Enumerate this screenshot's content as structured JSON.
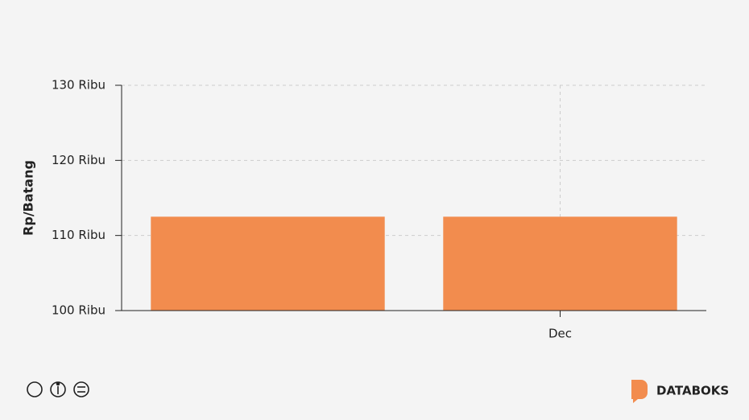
{
  "chart_data": {
    "type": "bar",
    "y_label": "Rp/Batang",
    "categories": [
      null,
      "Dec"
    ],
    "values": [
      112500,
      112500
    ],
    "color": "#f28c4e",
    "ylim": [
      100000,
      130000
    ],
    "yticks": [
      {
        "value": 100000,
        "label": "100 Ribu"
      },
      {
        "value": 110000,
        "label": "110 Ribu"
      },
      {
        "value": 120000,
        "label": "120 Ribu"
      },
      {
        "value": 130000,
        "label": "130 Ribu"
      }
    ],
    "grid": true
  },
  "footer": {
    "brand": "DATABOKS"
  }
}
